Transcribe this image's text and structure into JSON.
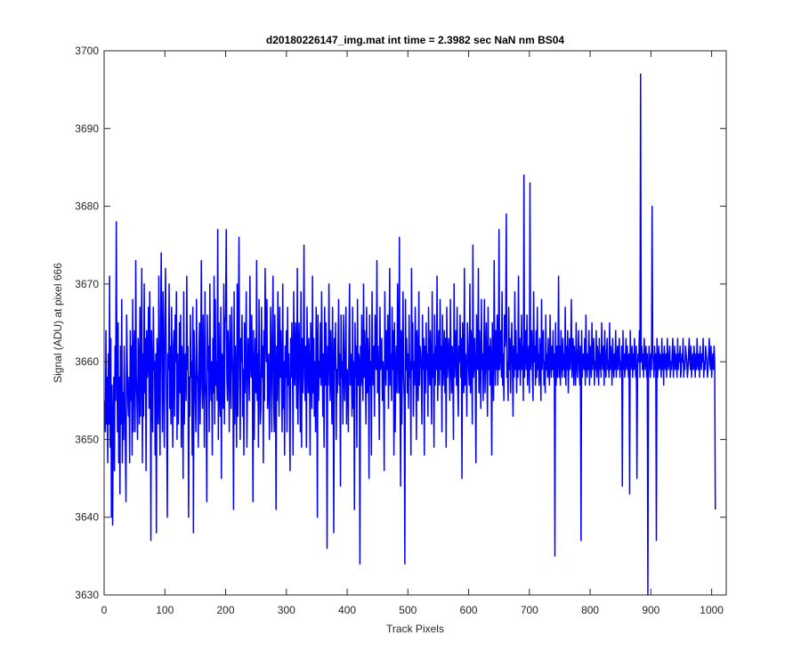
{
  "figure": {
    "background": "#ffffff",
    "axes_color": "#262626"
  },
  "chart_data": {
    "type": "line",
    "title": "d20180226147_img.mat int time = 2.3982 sec  NaN nm BS04",
    "xlabel": "Track Pixels",
    "ylabel": "Signal (ADU) at pixel 666",
    "xlim": [
      0,
      1024
    ],
    "ylim": [
      3630,
      3700
    ],
    "xticks": [
      0,
      100,
      200,
      300,
      400,
      500,
      600,
      700,
      800,
      900,
      1000
    ],
    "yticks": [
      3630,
      3640,
      3650,
      3660,
      3670,
      3680,
      3690,
      3700
    ],
    "xtick_labels": [
      "0",
      "100",
      "200",
      "300",
      "400",
      "500",
      "600",
      "700",
      "800",
      "900",
      "1000"
    ],
    "ytick_labels": [
      "3630",
      "3640",
      "3650",
      "3660",
      "3670",
      "3680",
      "3690",
      "3700"
    ],
    "grid": false,
    "legend": "none",
    "series": [
      {
        "color": "#0000ff",
        "x_start": 1,
        "x_step": 1,
        "values": [
          3655,
          3651,
          3664,
          3652,
          3658,
          3647,
          3661,
          3652,
          3671,
          3649,
          3663,
          3640,
          3657,
          3639,
          3652,
          3658,
          3646,
          3662,
          3655,
          3678,
          3660,
          3651,
          3665,
          3647,
          3658,
          3643,
          3662,
          3652,
          3668,
          3647,
          3656,
          3650,
          3662,
          3655,
          3649,
          3642,
          3666,
          3660,
          3655,
          3653,
          3658,
          3647,
          3664,
          3655,
          3662,
          3648,
          3668,
          3651,
          3661,
          3664,
          3651,
          3673,
          3658,
          3655,
          3650,
          3663,
          3660,
          3652,
          3667,
          3653,
          3661,
          3672,
          3647,
          3661,
          3653,
          3670,
          3656,
          3663,
          3646,
          3664,
          3658,
          3660,
          3667,
          3654,
          3669,
          3660,
          3637,
          3664,
          3657,
          3651,
          3667,
          3659,
          3660,
          3648,
          3661,
          3638,
          3663,
          3659,
          3652,
          3671,
          3657,
          3648,
          3665,
          3674,
          3661,
          3651,
          3669,
          3659,
          3649,
          3665,
          3672,
          3662,
          3653,
          3640,
          3661,
          3659,
          3670,
          3654,
          3662,
          3652,
          3667,
          3658,
          3649,
          3662,
          3664,
          3653,
          3666,
          3660,
          3669,
          3650,
          3661,
          3652,
          3657,
          3665,
          3656,
          3666,
          3649,
          3662,
          3659,
          3645,
          3669,
          3652,
          3660,
          3661,
          3655,
          3671,
          3659,
          3662,
          3640,
          3658,
          3653,
          3666,
          3658,
          3660,
          3648,
          3667,
          3638,
          3664,
          3659,
          3655,
          3651,
          3668,
          3659,
          3657,
          3649,
          3661,
          3665,
          3652,
          3660,
          3673,
          3657,
          3654,
          3666,
          3660,
          3649,
          3669,
          3658,
          3655,
          3642,
          3666,
          3659,
          3662,
          3651,
          3670,
          3658,
          3655,
          3660,
          3648,
          3663,
          3656,
          3671,
          3652,
          3668,
          3657,
          3660,
          3655,
          3677,
          3650,
          3665,
          3656,
          3653,
          3667,
          3645,
          3661,
          3659,
          3654,
          3670,
          3652,
          3665,
          3666,
          3677,
          3658,
          3655,
          3664,
          3660,
          3651,
          3666,
          3659,
          3654,
          3667,
          3661,
          3658,
          3641,
          3669,
          3652,
          3662,
          3658,
          3649,
          3670,
          3653,
          3665,
          3676,
          3658,
          3650,
          3663,
          3660,
          3666,
          3653,
          3659,
          3648,
          3665,
          3656,
          3662,
          3669,
          3649,
          3657,
          3663,
          3659,
          3655,
          3671,
          3660,
          3658,
          3666,
          3658,
          3642,
          3664,
          3650,
          3659,
          3663,
          3656,
          3673,
          3655,
          3661,
          3649,
          3668,
          3659,
          3652,
          3654,
          3667,
          3658,
          3662,
          3647,
          3664,
          3655,
          3672,
          3664,
          3660,
          3668,
          3654,
          3658,
          3661,
          3650,
          3656,
          3667,
          3660,
          3651,
          3664,
          3671,
          3656,
          3651,
          3666,
          3658,
          3641,
          3662,
          3655,
          3669,
          3660,
          3653,
          3667,
          3658,
          3664,
          3659,
          3651,
          3670,
          3654,
          3660,
          3648,
          3662,
          3658,
          3664,
          3651,
          3667,
          3657,
          3661,
          3655,
          3646,
          3663,
          3658,
          3665,
          3660,
          3648,
          3669,
          3659,
          3657,
          3665,
          3661,
          3654,
          3672,
          3652,
          3660,
          3665,
          3658,
          3651,
          3669,
          3649,
          3663,
          3656,
          3661,
          3675,
          3658,
          3655,
          3662,
          3649,
          3667,
          3660,
          3656,
          3663,
          3659,
          3648,
          3665,
          3660,
          3654,
          3671,
          3656,
          3663,
          3653,
          3660,
          3651,
          3667,
          3662,
          3640,
          3666,
          3655,
          3660,
          3658,
          3665,
          3657,
          3669,
          3660,
          3653,
          3661,
          3649,
          3667,
          3657,
          3665,
          3659,
          3636,
          3662,
          3657,
          3670,
          3661,
          3655,
          3664,
          3659,
          3652,
          3667,
          3658,
          3638,
          3663,
          3659,
          3665,
          3650,
          3659,
          3656,
          3662,
          3668,
          3657,
          3661,
          3644,
          3666,
          3658,
          3660,
          3652,
          3666,
          3660,
          3655,
          3661,
          3667,
          3652,
          3659,
          3658,
          3651,
          3663,
          3670,
          3657,
          3661,
          3659,
          3653,
          3667,
          3654,
          3660,
          3641,
          3665,
          3658,
          3662,
          3649,
          3668,
          3657,
          3661,
          3660,
          3634,
          3662,
          3657,
          3666,
          3659,
          3655,
          3670,
          3658,
          3664,
          3659,
          3652,
          3667,
          3656,
          3663,
          3660,
          3645,
          3666,
          3657,
          3660,
          3648,
          3669,
          3659,
          3657,
          3662,
          3653,
          3666,
          3660,
          3659,
          3673,
          3656,
          3662,
          3658,
          3650,
          3667,
          3659,
          3661,
          3663,
          3655,
          3660,
          3658,
          3646,
          3669,
          3661,
          3657,
          3664,
          3659,
          3666,
          3654,
          3660,
          3672,
          3657,
          3661,
          3655,
          3667,
          3659,
          3664,
          3648,
          3665,
          3651,
          3659,
          3662,
          3656,
          3670,
          3661,
          3656,
          3676,
          3657,
          3644,
          3664,
          3652,
          3661,
          3669,
          3658,
          3655,
          3634,
          3668,
          3659,
          3663,
          3656,
          3661,
          3654,
          3666,
          3658,
          3660,
          3648,
          3672,
          3659,
          3665,
          3653,
          3660,
          3657,
          3667,
          3662,
          3650,
          3664,
          3658,
          3655,
          3669,
          3657,
          3662,
          3661,
          3659,
          3652,
          3666,
          3659,
          3663,
          3648,
          3662,
          3656,
          3665,
          3659,
          3661,
          3653,
          3667,
          3660,
          3657,
          3664,
          3659,
          3652,
          3669,
          3658,
          3661,
          3649,
          3666,
          3657,
          3662,
          3659,
          3671,
          3655,
          3660,
          3664,
          3657,
          3668,
          3659,
          3662,
          3651,
          3666,
          3657,
          3660,
          3664,
          3656,
          3663,
          3649,
          3667,
          3658,
          3660,
          3663,
          3659,
          3655,
          3668,
          3660,
          3656,
          3662,
          3659,
          3650,
          3670,
          3658,
          3661,
          3664,
          3657,
          3667,
          3657,
          3653,
          3662,
          3660,
          3666,
          3658,
          3663,
          3645,
          3665,
          3659,
          3656,
          3672,
          3657,
          3661,
          3659,
          3653,
          3665,
          3662,
          3659,
          3657,
          3670,
          3656,
          3664,
          3661,
          3652,
          3675,
          3658,
          3660,
          3663,
          3658,
          3647,
          3666,
          3660,
          3659,
          3672,
          3656,
          3664,
          3660,
          3654,
          3668,
          3659,
          3661,
          3655,
          3662,
          3668,
          3656,
          3660,
          3665,
          3659,
          3653,
          3667,
          3659,
          3662,
          3657,
          3663,
          3660,
          3648,
          3665,
          3659,
          3655,
          3673,
          3661,
          3657,
          3664,
          3659,
          3666,
          3657,
          3660,
          3677,
          3659,
          3661,
          3664,
          3658,
          3669,
          3657,
          3661,
          3655,
          3666,
          3662,
          3664,
          3679,
          3658,
          3660,
          3655,
          3667,
          3659,
          3663,
          3656,
          3661,
          3665,
          3660,
          3653,
          3662,
          3658,
          3669,
          3659,
          3664,
          3656,
          3661,
          3658,
          3671,
          3659,
          3663,
          3657,
          3660,
          3666,
          3659,
          3662,
          3655,
          3684,
          3658,
          3661,
          3664,
          3659,
          3666,
          3657,
          3660,
          3662,
          3656,
          3683,
          3659,
          3661,
          3664,
          3658,
          3655,
          3669,
          3660,
          3662,
          3657,
          3664,
          3658,
          3667,
          3659,
          3661,
          3657,
          3663,
          3660,
          3655,
          3668,
          3659,
          3662,
          3664,
          3657,
          3660,
          3656,
          3666,
          3659,
          3661,
          3658,
          3663,
          3659,
          3657,
          3666,
          3660,
          3658,
          3662,
          3659,
          3664,
          3658,
          3661,
          3635,
          3665,
          3657,
          3662,
          3658,
          3660,
          3671,
          3658,
          3662,
          3657,
          3664,
          3660,
          3658,
          3663,
          3659,
          3661,
          3658,
          3667,
          3657,
          3662,
          3659,
          3664,
          3656,
          3660,
          3663,
          3659,
          3661,
          3668,
          3658,
          3660,
          3663,
          3657,
          3662,
          3659,
          3657,
          3665,
          3660,
          3658,
          3661,
          3664,
          3659,
          3657,
          3662,
          3637,
          3664,
          3658,
          3660,
          3661,
          3659,
          3663,
          3657,
          3666,
          3660,
          3658,
          3661,
          3659,
          3664,
          3657,
          3662,
          3660,
          3658,
          3665,
          3659,
          3661,
          3663,
          3657,
          3660,
          3659,
          3664,
          3658,
          3662,
          3660,
          3657,
          3663,
          3659,
          3661,
          3658,
          3665,
          3660,
          3659,
          3662,
          3657,
          3664,
          3660,
          3658,
          3661,
          3663,
          3659,
          3660,
          3658,
          3665,
          3659,
          3662,
          3660,
          3657,
          3663,
          3660,
          3658,
          3661,
          3659,
          3664,
          3658,
          3660,
          3662,
          3659,
          3661,
          3663,
          3658,
          3660,
          3659,
          3662,
          3644,
          3664,
          3659,
          3661,
          3658,
          3660,
          3663,
          3659,
          3662,
          3660,
          3658,
          3661,
          3643,
          3664,
          3659,
          3660,
          3662,
          3658,
          3661,
          3659,
          3663,
          3660,
          3658,
          3662,
          3645,
          3659,
          3661,
          3660,
          3664,
          3658,
          3697,
          3660,
          3662,
          3659,
          3661,
          3658,
          3663,
          3660,
          3659,
          3662,
          3658,
          3661,
          3630,
          3659,
          3662,
          3660,
          3658,
          3661,
          3659,
          3680,
          3661,
          3660,
          3658,
          3662,
          3659,
          3661,
          3637,
          3663,
          3658,
          3660,
          3662,
          3659,
          3661,
          3660,
          3658,
          3663,
          3659,
          3661,
          3657,
          3662,
          3660,
          3659,
          3661,
          3658,
          3663,
          3660,
          3659,
          3661,
          3662,
          3658,
          3660,
          3659,
          3661,
          3663,
          3658,
          3660,
          3662,
          3659,
          3661,
          3660,
          3658,
          3663,
          3659,
          3661,
          3660,
          3662,
          3658,
          3659,
          3661,
          3660,
          3663,
          3658,
          3660,
          3659,
          3662,
          3661,
          3660,
          3658,
          3659,
          3661,
          3663,
          3660,
          3659,
          3662,
          3658,
          3660,
          3661,
          3659,
          3662,
          3660,
          3658,
          3661,
          3659,
          3663,
          3660,
          3659,
          3661,
          3658,
          3662,
          3660,
          3659,
          3661,
          3660,
          3663,
          3658,
          3660,
          3659,
          3662,
          3661,
          3660,
          3658,
          3659,
          3661,
          3663,
          3660,
          3659,
          3662,
          3658,
          3660,
          3661,
          3659,
          3662,
          3660,
          3641
        ]
      }
    ]
  }
}
